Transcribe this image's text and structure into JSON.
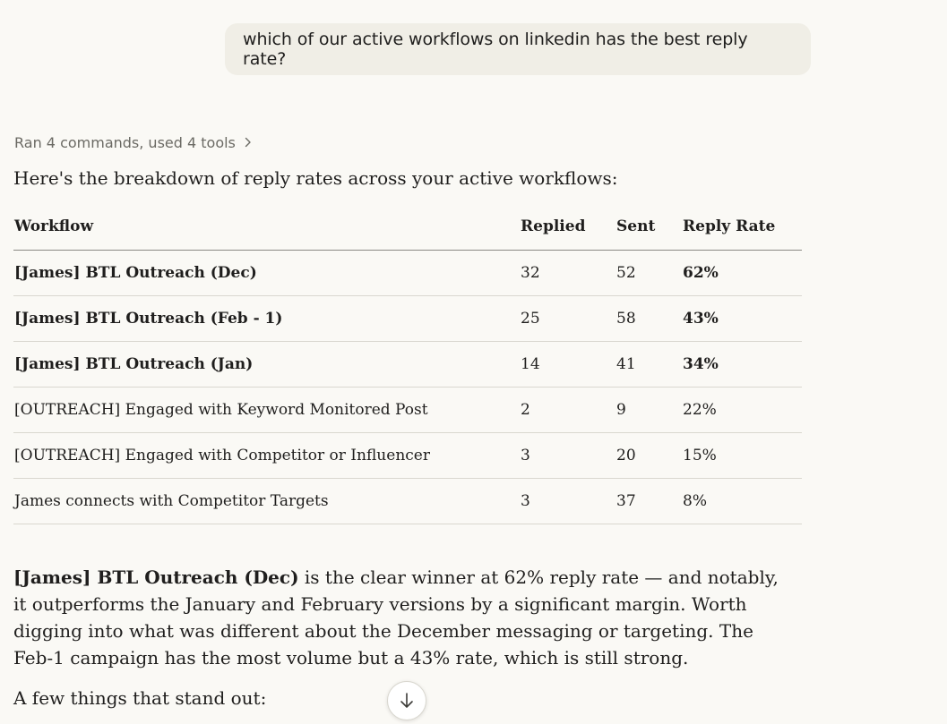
{
  "user_message": "which of our active workflows on linkedin has the best reply rate?",
  "tools_summary": "Ran 4 commands, used 4 tools",
  "intro": "Here's the breakdown of reply rates across your active workflows:",
  "table": {
    "headers": [
      "Workflow",
      "Replied",
      "Sent",
      "Reply Rate"
    ],
    "rows": [
      {
        "name": "[James] BTL Outreach (Dec)",
        "replied": "32",
        "sent": "52",
        "rate": "62%"
      },
      {
        "name": "[James] BTL Outreach (Feb - 1)",
        "replied": "25",
        "sent": "58",
        "rate": "43%"
      },
      {
        "name": "[James] BTL Outreach (Jan)",
        "replied": "14",
        "sent": "41",
        "rate": "34%"
      },
      {
        "name": "[OUTREACH] Engaged with Keyword Monitored Post",
        "replied": "2",
        "sent": "9",
        "rate": "22%"
      },
      {
        "name": "[OUTREACH] Engaged with Competitor or Influencer",
        "replied": "3",
        "sent": "20",
        "rate": "15%"
      },
      {
        "name": "James connects with Competitor Targets",
        "replied": "3",
        "sent": "37",
        "rate": "8%"
      }
    ]
  },
  "summary": {
    "bold_lead": "[James] BTL Outreach (Dec)",
    "text": " is the clear winner at 62% reply rate — and notably, it outperforms the January and February versions by a significant margin. Worth digging into what was different about the December messaging or targeting. The Feb-1 campaign has the most volume but a 43% rate, which is still strong."
  },
  "standout": "A few things that stand out:",
  "icons": {
    "tools_chevron": "chevron-right-icon",
    "scroll_down": "arrow-down-icon"
  }
}
